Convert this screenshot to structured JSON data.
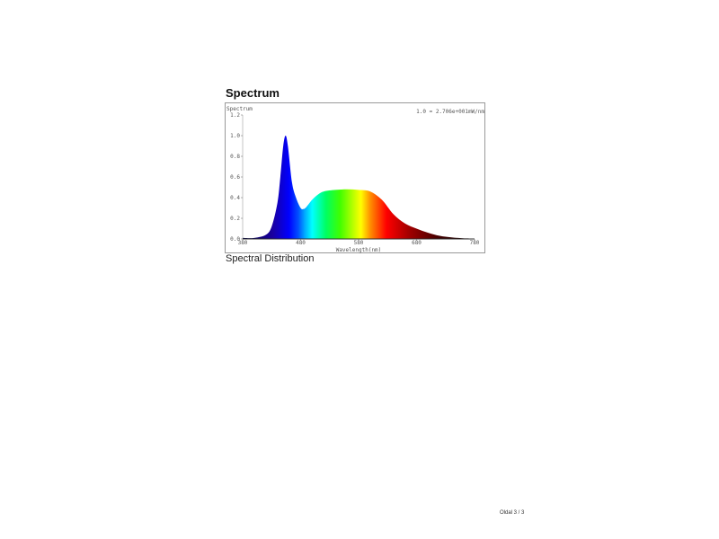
{
  "section_title": "Spectrum",
  "caption": "Spectral Distribution",
  "footer": "Oldal 3 / 3",
  "chart_data": {
    "type": "area",
    "title": "",
    "ylabel": "Spectrum",
    "xlabel": "Wavelength(nm)",
    "annotation": "1.0 = 2.706e+001mW/nm",
    "xlim": [
      380,
      780
    ],
    "ylim": [
      0,
      1.2
    ],
    "xticks": [
      380,
      480,
      580,
      680,
      780
    ],
    "yticks": [
      0.0,
      0.2,
      0.4,
      0.6,
      0.8,
      1.0,
      1.2
    ],
    "ytick_labels": [
      "0.0",
      "0.2",
      "0.4",
      "0.6",
      "0.8",
      "1.0",
      "1.2"
    ],
    "grid": false,
    "fill": "wavelength-colored spectrum",
    "x": [
      380,
      400,
      420,
      430,
      440,
      445,
      450,
      454,
      458,
      465,
      472,
      480,
      485,
      490,
      500,
      510,
      520,
      540,
      560,
      580,
      600,
      620,
      640,
      660,
      680,
      700,
      720,
      740,
      760,
      780
    ],
    "y": [
      0.01,
      0.01,
      0.04,
      0.12,
      0.35,
      0.6,
      0.9,
      1.0,
      0.9,
      0.55,
      0.4,
      0.3,
      0.29,
      0.31,
      0.38,
      0.43,
      0.46,
      0.475,
      0.48,
      0.475,
      0.46,
      0.38,
      0.24,
      0.15,
      0.1,
      0.06,
      0.03,
      0.015,
      0.007,
      0.004
    ]
  }
}
